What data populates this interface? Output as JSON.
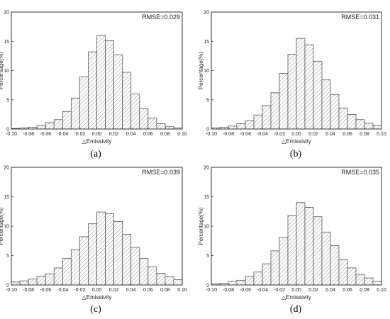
{
  "figure": {
    "panels": [
      {
        "caption": "(a)",
        "rmse_label": "RMSE=0.029"
      },
      {
        "caption": "(b)",
        "rmse_label": "RMSE=0.031"
      },
      {
        "caption": "(c)",
        "rmse_label": "RMSE=0.039"
      },
      {
        "caption": "(d)",
        "rmse_label": "RMSE=0.035"
      }
    ]
  },
  "chart_data": [
    {
      "type": "bar",
      "panel": "(a)",
      "annotation": "RMSE=0.029",
      "xlabel": "△Emissivity",
      "ylabel": "Percentage(%)",
      "xlim": [
        -0.1,
        0.1
      ],
      "ylim": [
        0,
        20
      ],
      "xticks": [
        "-0.10",
        "-0.08",
        "-0.06",
        "-0.04",
        "-0.02",
        "0.00",
        "0.02",
        "0.04",
        "0.06",
        "0.08",
        "0.10"
      ],
      "yticks": [
        "0",
        "5",
        "10",
        "15",
        "20"
      ],
      "bin_width": 0.01,
      "bin_starts": [
        -0.1,
        -0.09,
        -0.08,
        -0.07,
        -0.06,
        -0.05,
        -0.04,
        -0.03,
        -0.02,
        -0.01,
        0.0,
        0.01,
        0.02,
        0.03,
        0.04,
        0.05,
        0.06,
        0.07,
        0.08,
        0.09
      ],
      "values": [
        0.1,
        0.2,
        0.3,
        0.6,
        1.1,
        1.6,
        3.0,
        5.3,
        8.9,
        13.2,
        16.0,
        15.1,
        12.7,
        9.7,
        6.0,
        3.5,
        1.9,
        0.9,
        0.4,
        0.2
      ],
      "fill": "#ffffff",
      "hatch_color": "#8c8c8c",
      "edge_color": "#555555"
    },
    {
      "type": "bar",
      "panel": "(b)",
      "annotation": "RMSE=0.031",
      "xlabel": "△Emissivity",
      "ylabel": "Percentage(%)",
      "xlim": [
        -0.1,
        0.1
      ],
      "ylim": [
        0,
        20
      ],
      "xticks": [
        "-0.10",
        "-0.08",
        "-0.06",
        "-0.04",
        "-0.02",
        "0.00",
        "0.02",
        "0.04",
        "0.06",
        "0.08",
        "0.10"
      ],
      "yticks": [
        "0",
        "5",
        "10",
        "15",
        "20"
      ],
      "bin_width": 0.01,
      "bin_starts": [
        -0.1,
        -0.09,
        -0.08,
        -0.07,
        -0.06,
        -0.05,
        -0.04,
        -0.03,
        -0.02,
        -0.01,
        0.0,
        0.01,
        0.02,
        0.03,
        0.04,
        0.05,
        0.06,
        0.07,
        0.08,
        0.09
      ],
      "values": [
        0.2,
        0.3,
        0.5,
        0.9,
        1.4,
        2.4,
        4.0,
        6.2,
        9.5,
        12.8,
        15.5,
        14.4,
        11.6,
        8.4,
        5.9,
        3.6,
        2.5,
        1.6,
        1.0,
        0.6
      ],
      "fill": "#ffffff",
      "hatch_color": "#8c8c8c",
      "edge_color": "#555555"
    },
    {
      "type": "bar",
      "panel": "(c)",
      "annotation": "RMSE=0.039",
      "xlabel": "△Emissivity",
      "ylabel": "Percentage(%)",
      "xlim": [
        -0.1,
        0.1
      ],
      "ylim": [
        0,
        20
      ],
      "xticks": [
        "-0.10",
        "-0.08",
        "-0.06",
        "-0.04",
        "-0.02",
        "0.00",
        "0.02",
        "0.04",
        "0.06",
        "0.08",
        "0.10"
      ],
      "yticks": [
        "0",
        "5",
        "10",
        "15",
        "20"
      ],
      "bin_width": 0.01,
      "bin_starts": [
        -0.1,
        -0.09,
        -0.08,
        -0.07,
        -0.06,
        -0.05,
        -0.04,
        -0.03,
        -0.02,
        -0.01,
        0.0,
        0.01,
        0.02,
        0.03,
        0.04,
        0.05,
        0.06,
        0.07,
        0.08,
        0.09
      ],
      "values": [
        0.5,
        0.7,
        1.0,
        1.5,
        1.9,
        2.9,
        4.5,
        6.0,
        8.2,
        10.4,
        12.4,
        12.1,
        10.8,
        8.6,
        6.4,
        4.5,
        3.1,
        2.0,
        1.4,
        0.9
      ],
      "fill": "#ffffff",
      "hatch_color": "#8c8c8c",
      "edge_color": "#555555"
    },
    {
      "type": "bar",
      "panel": "(d)",
      "annotation": "RMSE=0.035",
      "xlabel": "△Emissivity",
      "ylabel": "Percentage(%)",
      "xlim": [
        -0.1,
        0.1
      ],
      "ylim": [
        0,
        20
      ],
      "xticks": [
        "-0.10",
        "-0.08",
        "-0.06",
        "-0.04",
        "-0.02",
        "0.00",
        "0.02",
        "0.04",
        "0.06",
        "0.08",
        "0.10"
      ],
      "yticks": [
        "0",
        "5",
        "10",
        "15",
        "20"
      ],
      "bin_width": 0.01,
      "bin_starts": [
        -0.1,
        -0.09,
        -0.08,
        -0.07,
        -0.06,
        -0.05,
        -0.04,
        -0.03,
        -0.02,
        -0.01,
        0.0,
        0.01,
        0.02,
        0.03,
        0.04,
        0.05,
        0.06,
        0.07,
        0.08,
        0.09
      ],
      "values": [
        0.2,
        0.3,
        0.6,
        0.8,
        1.5,
        2.2,
        3.6,
        5.8,
        8.1,
        11.8,
        14.0,
        13.2,
        11.6,
        9.0,
        6.7,
        4.3,
        2.9,
        1.8,
        1.2,
        0.6
      ],
      "fill": "#ffffff",
      "hatch_color": "#8c8c8c",
      "edge_color": "#555555"
    }
  ]
}
